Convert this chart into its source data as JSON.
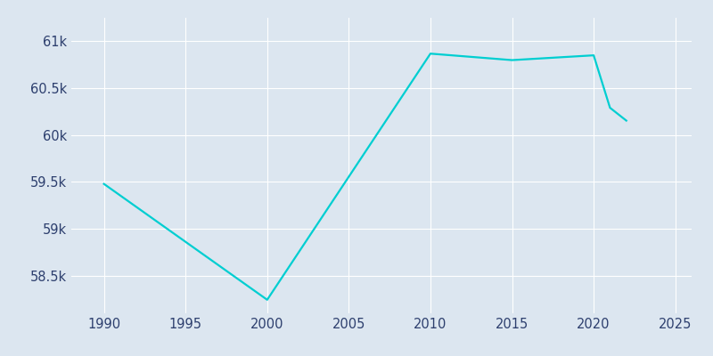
{
  "years": [
    1990,
    2000,
    2010,
    2015,
    2020,
    2021,
    2022
  ],
  "population": [
    59479,
    58244,
    60868,
    60799,
    60850,
    60291,
    60154
  ],
  "line_color": "#00CED1",
  "bg_color": "#dce6f0",
  "grid_color": "#ffffff",
  "xlim": [
    1988,
    2026
  ],
  "ylim": [
    58100,
    61250
  ],
  "xticks": [
    1990,
    1995,
    2000,
    2005,
    2010,
    2015,
    2020,
    2025
  ],
  "ytick_values": [
    58500,
    59000,
    59500,
    60000,
    60500,
    61000
  ],
  "ytick_labels": [
    "58.5k",
    "59k",
    "59.5k",
    "60k",
    "60.5k",
    "61k"
  ],
  "tick_color": "#2d3f6e",
  "tick_fontsize": 10.5,
  "line_width": 1.6
}
